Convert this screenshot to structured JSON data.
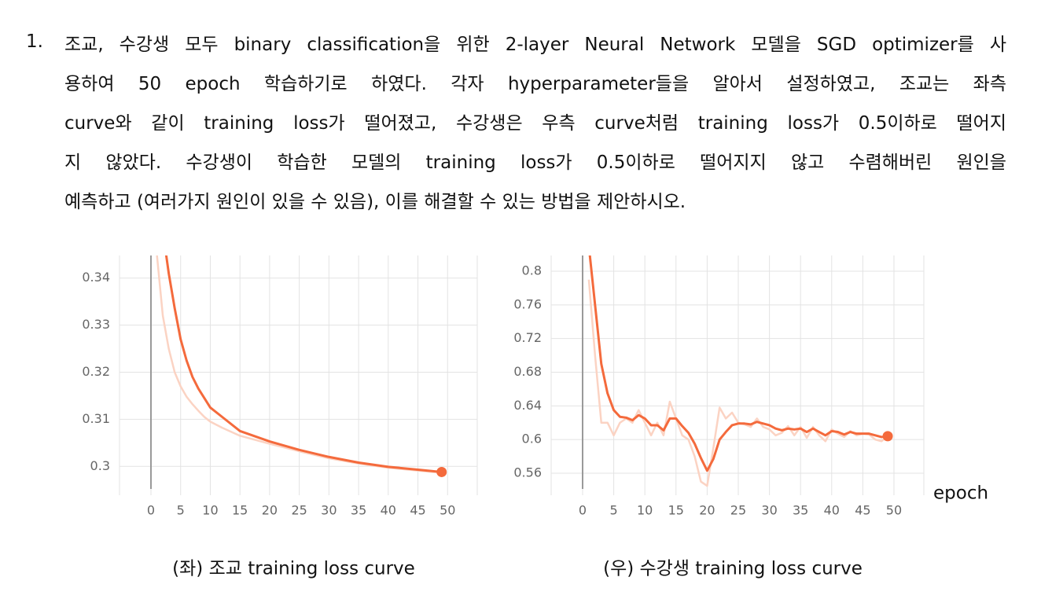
{
  "question": {
    "number": "1.",
    "lines": [
      "조교, 수강생 모두 binary classification을 위한 2-layer Neural Network 모델을 SGD optimizer를 사",
      "용하여 50 epoch 학습하기로 하였다. 각자 hyperparameter들을 알아서 설정하였고, 조교는 좌측",
      "curve와 같이 training loss가 떨어졌고, 수강생은 우측 curve처럼 training loss가 0.5이하로 떨어지",
      "지 않았다. 수강생이 학습한 모델의 training loss가 0.5이하로 떨어지지 않고 수렴해버린 원인을",
      "예측하고 (여러가지 원인이 있을 수 있음), 이를 해결할 수 있는 방법을 제안하시오."
    ]
  },
  "chart_data": [
    {
      "type": "line",
      "caption": "(좌) 조교 training loss curve",
      "x": [
        1,
        2,
        3,
        4,
        5,
        6,
        7,
        8,
        9,
        10,
        12,
        15,
        20,
        25,
        30,
        35,
        40,
        45,
        49
      ],
      "series": [
        {
          "color": "#fbd3c3",
          "values": [
            0.345,
            0.332,
            0.325,
            0.32,
            0.317,
            0.3148,
            0.3132,
            0.3118,
            0.3105,
            0.3095,
            0.3082,
            0.3065,
            0.3048,
            0.3032,
            0.3017,
            0.3006,
            0.2997,
            0.2991,
            0.2986
          ]
        },
        {
          "color": "#f46a3c",
          "values": [
            null,
            0.35,
            0.341,
            0.3336,
            0.327,
            0.3225,
            0.319,
            0.3165,
            0.3145,
            0.3125,
            0.3105,
            0.3075,
            0.3053,
            0.3035,
            0.302,
            0.3008,
            0.2999,
            0.2993,
            0.2988
          ]
        }
      ],
      "end_marker": true,
      "xlim": [
        -5.3,
        55
      ],
      "ylim": [
        0.2952,
        0.3448
      ],
      "xticks": [
        0,
        5,
        10,
        15,
        20,
        25,
        30,
        35,
        40,
        45,
        50
      ],
      "yticks": [
        0.3,
        0.31,
        0.32,
        0.33,
        0.34
      ],
      "grid": true
    },
    {
      "type": "line",
      "caption": "(우) 수강생 training loss curve",
      "xlabel": "epoch",
      "x": [
        1,
        2,
        3,
        4,
        5,
        6,
        7,
        8,
        9,
        10,
        11,
        12,
        13,
        14,
        15,
        16,
        17,
        18,
        19,
        20,
        21,
        22,
        23,
        24,
        25,
        26,
        27,
        28,
        29,
        30,
        31,
        32,
        33,
        34,
        35,
        36,
        37,
        38,
        39,
        40,
        41,
        42,
        43,
        44,
        45,
        46,
        47,
        48,
        49
      ],
      "series": [
        {
          "color": "#fbd3c3",
          "values": [
            0.79,
            0.7,
            0.62,
            0.62,
            0.605,
            0.62,
            0.625,
            0.62,
            0.635,
            0.62,
            0.605,
            0.62,
            0.605,
            0.645,
            0.625,
            0.605,
            0.6,
            0.58,
            0.55,
            0.545,
            0.59,
            0.638,
            0.625,
            0.632,
            0.62,
            0.618,
            0.615,
            0.625,
            0.615,
            0.612,
            0.605,
            0.608,
            0.616,
            0.605,
            0.615,
            0.602,
            0.615,
            0.605,
            0.598,
            0.612,
            0.607,
            0.603,
            0.61,
            0.605,
            0.607,
            0.606,
            0.6,
            0.598,
            0.604
          ]
        },
        {
          "color": "#f46a3c",
          "values": [
            0.83,
            0.76,
            0.69,
            0.655,
            0.635,
            0.627,
            0.626,
            0.623,
            0.629,
            0.625,
            0.617,
            0.617,
            0.611,
            0.625,
            0.625,
            0.616,
            0.608,
            0.595,
            0.578,
            0.563,
            0.577,
            0.6,
            0.609,
            0.617,
            0.619,
            0.619,
            0.618,
            0.621,
            0.619,
            0.617,
            0.613,
            0.611,
            0.613,
            0.612,
            0.613,
            0.609,
            0.613,
            0.609,
            0.605,
            0.61,
            0.609,
            0.606,
            0.609,
            0.607,
            0.607,
            0.607,
            0.605,
            0.603,
            0.604
          ]
        }
      ],
      "end_marker": true,
      "xlim": [
        -5.05,
        54.8
      ],
      "ylim": [
        0.5413,
        0.8187
      ],
      "xticks": [
        0,
        5,
        10,
        15,
        20,
        25,
        30,
        35,
        40,
        45,
        50
      ],
      "yticks": [
        0.56,
        0.6,
        0.64,
        0.68,
        0.72,
        0.76,
        0.8
      ],
      "grid": true
    }
  ]
}
